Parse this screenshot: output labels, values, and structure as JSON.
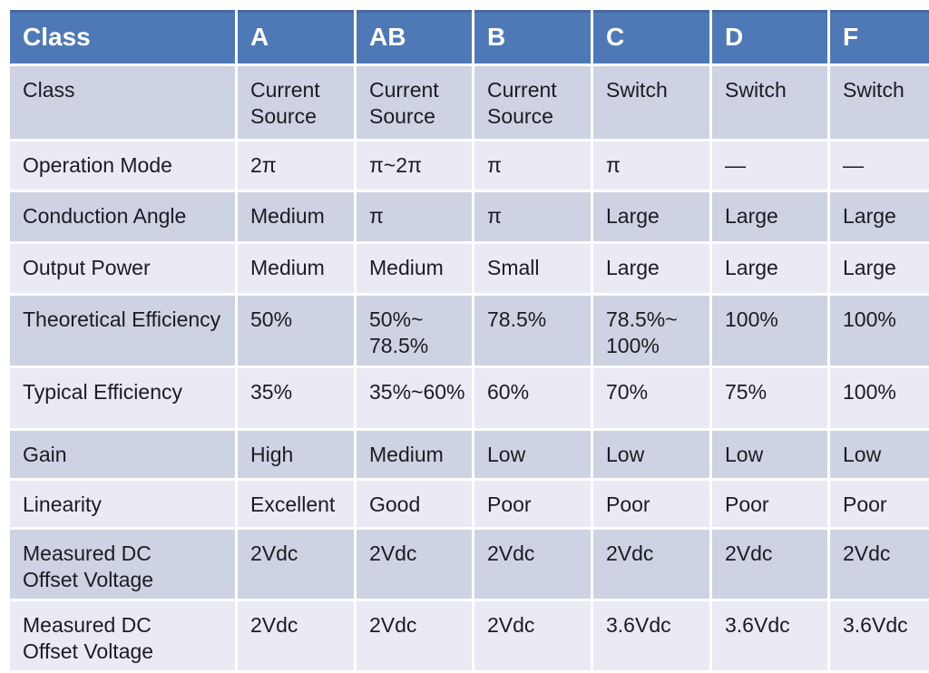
{
  "chart_data": {
    "type": "table",
    "columns": [
      "Class",
      "A",
      "AB",
      "B",
      "C",
      "D",
      "F"
    ],
    "rows": [
      [
        "Class",
        "Current Source",
        "Current Source",
        "Current Source",
        "Switch",
        "Switch",
        "Switch"
      ],
      [
        "Operation Mode",
        "2π",
        "π~2π",
        "π",
        "π",
        "—",
        "—"
      ],
      [
        "Conduction Angle",
        "Medium",
        "π",
        "π",
        "Large",
        "Large",
        "Large"
      ],
      [
        "Output Power",
        "Medium",
        "Medium",
        "Small",
        "Large",
        "Large",
        "Large"
      ],
      [
        "Theoretical Efficiency",
        "50%",
        "50%~78.5%",
        "78.5%",
        "78.5%~100%",
        "100%",
        "100%"
      ],
      [
        "Typical Efficiency",
        "35%",
        "35%~60%",
        "60%",
        "70%",
        "75%",
        "100%"
      ],
      [
        "Gain",
        "High",
        "Medium",
        "Low",
        "Low",
        "Low",
        "Low"
      ],
      [
        "Linearity",
        "Excellent",
        "Good",
        "Poor",
        "Poor",
        "Poor",
        "Poor"
      ],
      [
        "Measured DC Offset Voltage",
        "2Vdc",
        "2Vdc",
        "2Vdc",
        "2Vdc",
        "2Vdc",
        "2Vdc"
      ],
      [
        "Measured DC Offset Voltage",
        "2Vdc",
        "2Vdc",
        "2Vdc",
        "3.6Vdc",
        "3.6Vdc",
        "3.6Vdc"
      ]
    ]
  },
  "display": {
    "header": [
      "Class",
      "A",
      "AB",
      "B",
      "C",
      "D",
      "F"
    ],
    "rows": [
      [
        "Class",
        "Current\nSource",
        "Current\nSource",
        "Current\nSource",
        "Switch",
        "Switch",
        "Switch"
      ],
      [
        "Operation Mode",
        "2π",
        "π~2π",
        "π",
        "π",
        "—",
        "—"
      ],
      [
        "Conduction Angle",
        "Medium",
        "π",
        "π",
        "Large",
        "Large",
        "Large"
      ],
      [
        "Output Power",
        "Medium",
        "Medium",
        "Small",
        "Large",
        "Large",
        "Large"
      ],
      [
        "Theoretical Efficiency",
        "50%",
        "50%~\n78.5%",
        "78.5%",
        "78.5%~\n100%",
        "100%",
        "100%"
      ],
      [
        "Typical Efficiency",
        "35%",
        "35%~60%",
        "60%",
        "70%",
        "75%",
        "100%"
      ],
      [
        "Gain",
        "High",
        "Medium",
        "Low",
        "Low",
        "Low",
        "Low"
      ],
      [
        "Linearity",
        "Excellent",
        "Good",
        "Poor",
        "Poor",
        "Poor",
        "Poor"
      ],
      [
        "Measured DC\nOffset Voltage",
        "2Vdc",
        "2Vdc",
        "2Vdc",
        "2Vdc",
        "2Vdc",
        "2Vdc"
      ],
      [
        "Measured DC\nOffset Voltage",
        "2Vdc",
        "2Vdc",
        "2Vdc",
        "3.6Vdc",
        "3.6Vdc",
        "3.6Vdc"
      ]
    ]
  },
  "colors": {
    "header_bg": "#4e79b6",
    "header_top_border": "#44689f",
    "header_text": "#ffffff",
    "band_dark": "#cdd3e2",
    "band_light": "#e9eaf4",
    "body_text": "#1b1c22",
    "grid_gap": "#ffffff"
  }
}
